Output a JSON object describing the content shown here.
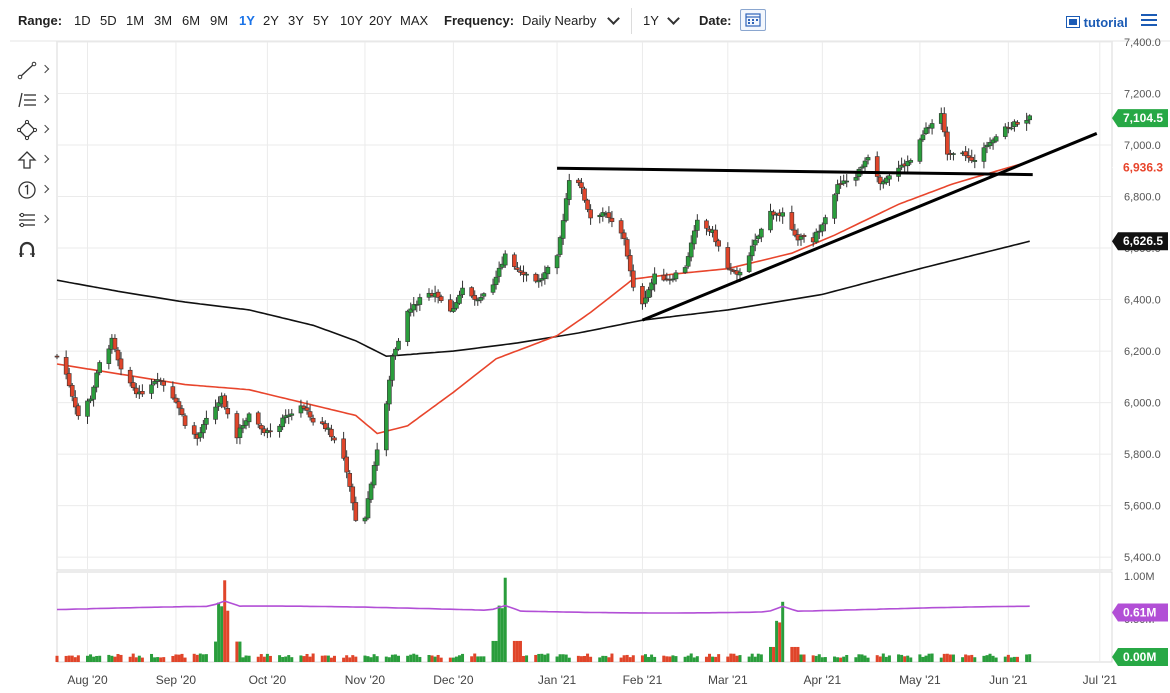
{
  "toolbar": {
    "range_label": "Range:",
    "ranges": [
      "1D",
      "5D",
      "1M",
      "3M",
      "6M",
      "9M",
      "1Y",
      "2Y",
      "3Y",
      "5Y",
      "10Y",
      "20Y",
      "MAX"
    ],
    "active_range": "1Y",
    "frequency_label": "Frequency:",
    "frequency_value": "Daily Nearby",
    "period_value": "1Y",
    "date_label": "Date:",
    "tutorial_label": "tutorial"
  },
  "drawing_tools": [
    "line-tool-icon",
    "fibonacci-tool-icon",
    "shape-tool-icon",
    "arrow-tool-icon",
    "counter-tool-icon",
    "pitchfork-tool-icon",
    "magnet-icon"
  ],
  "colors": {
    "up": "#2a9d3c",
    "down": "#e0452a",
    "ma50": "#e8452c",
    "ma200": "#111111",
    "volume_avg": "#b24fd6",
    "price_badge": "#27a845",
    "ma50_badge": "#e8452c",
    "ma200_badge": "#111111",
    "vol_badge": "#b24fd6",
    "vol_zero_badge": "#27a845"
  },
  "badges": {
    "last_price": "7,104.5",
    "ma50_value": "6,936.3",
    "ma200_value": "6,626.5",
    "volume_avg": "0.61M",
    "volume_zero": "0.00M"
  },
  "chart_data": {
    "type": "candlestick",
    "x_labels": [
      "Aug '20",
      "Sep '20",
      "Oct '20",
      "Nov '20",
      "Dec '20",
      "Jan '21",
      "Feb '21",
      "Mar '21",
      "Apr '21",
      "May '21",
      "Jun '21",
      "Jul '21"
    ],
    "y_ticks": [
      "7,400.0",
      "7,200.0",
      "7,000.0",
      "6,800.0",
      "6,600.0",
      "6,400.0",
      "6,200.0",
      "6,000.0",
      "5,800.0",
      "5,600.0",
      "5,400.0"
    ],
    "ylim": [
      5350,
      7400
    ],
    "volume_ticks": [
      "1.00M",
      "0.50M"
    ],
    "volume_ylim": [
      0,
      1.0
    ],
    "grid": true,
    "close_anchors": [
      [
        "2020-07-24",
        6180
      ],
      [
        "2020-07-27",
        6110
      ],
      [
        "2020-07-31",
        5950
      ],
      [
        "2020-08-04",
        6020
      ],
      [
        "2020-08-07",
        6150
      ],
      [
        "2020-08-11",
        6240
      ],
      [
        "2020-08-14",
        6120
      ],
      [
        "2020-08-20",
        6030
      ],
      [
        "2020-08-26",
        6100
      ],
      [
        "2020-09-01",
        6010
      ],
      [
        "2020-09-04",
        5920
      ],
      [
        "2020-09-08",
        5860
      ],
      [
        "2020-09-11",
        5930
      ],
      [
        "2020-09-16",
        6020
      ],
      [
        "2020-09-21",
        5870
      ],
      [
        "2020-09-25",
        5960
      ],
      [
        "2020-09-29",
        5900
      ],
      [
        "2020-10-02",
        5880
      ],
      [
        "2020-10-06",
        5930
      ],
      [
        "2020-10-12",
        5990
      ],
      [
        "2020-10-16",
        5930
      ],
      [
        "2020-10-21",
        5900
      ],
      [
        "2020-10-26",
        5780
      ],
      [
        "2020-10-30",
        5550
      ],
      [
        "2020-11-02",
        5560
      ],
      [
        "2020-11-05",
        5760
      ],
      [
        "2020-11-09",
        5990
      ],
      [
        "2020-11-11",
        6180
      ],
      [
        "2020-11-16",
        6350
      ],
      [
        "2020-11-20",
        6400
      ],
      [
        "2020-11-25",
        6430
      ],
      [
        "2020-11-30",
        6350
      ],
      [
        "2020-12-04",
        6440
      ],
      [
        "2020-12-09",
        6390
      ],
      [
        "2020-12-14",
        6450
      ],
      [
        "2020-12-18",
        6580
      ],
      [
        "2020-12-22",
        6520
      ],
      [
        "2020-12-29",
        6470
      ],
      [
        "2021-01-04",
        6560
      ],
      [
        "2021-01-08",
        6870
      ],
      [
        "2021-01-11",
        6860
      ],
      [
        "2021-01-15",
        6720
      ],
      [
        "2021-01-19",
        6740
      ],
      [
        "2021-01-26",
        6640
      ],
      [
        "2021-01-29",
        6440
      ],
      [
        "2021-02-01",
        6390
      ],
      [
        "2021-02-05",
        6490
      ],
      [
        "2021-02-10",
        6480
      ],
      [
        "2021-02-15",
        6530
      ],
      [
        "2021-02-19",
        6700
      ],
      [
        "2021-02-24",
        6660
      ],
      [
        "2021-03-01",
        6520
      ],
      [
        "2021-03-04",
        6490
      ],
      [
        "2021-03-09",
        6600
      ],
      [
        "2021-03-15",
        6740
      ],
      [
        "2021-03-19",
        6730
      ],
      [
        "2021-03-23",
        6640
      ],
      [
        "2021-03-29",
        6630
      ],
      [
        "2021-04-01",
        6700
      ],
      [
        "2021-04-06",
        6840
      ],
      [
        "2021-04-12",
        6880
      ],
      [
        "2021-04-16",
        6960
      ],
      [
        "2021-04-20",
        6860
      ],
      [
        "2021-04-26",
        6910
      ],
      [
        "2021-04-30",
        6940
      ],
      [
        "2021-05-05",
        7060
      ],
      [
        "2021-05-10",
        7120
      ],
      [
        "2021-05-12",
        6970
      ],
      [
        "2021-05-17",
        6980
      ],
      [
        "2021-05-20",
        6930
      ],
      [
        "2021-05-25",
        7010
      ],
      [
        "2021-05-31",
        7060
      ],
      [
        "2021-06-04",
        7090
      ],
      [
        "2021-06-08",
        7104.5
      ]
    ],
    "ma50_anchors": [
      [
        "2020-07-24",
        6150
      ],
      [
        "2020-08-14",
        6110
      ],
      [
        "2020-09-04",
        6070
      ],
      [
        "2020-09-25",
        6050
      ],
      [
        "2020-10-16",
        5990
      ],
      [
        "2020-10-30",
        5950
      ],
      [
        "2020-11-06",
        5880
      ],
      [
        "2020-11-16",
        5910
      ],
      [
        "2020-12-01",
        6040
      ],
      [
        "2020-12-15",
        6170
      ],
      [
        "2021-01-04",
        6260
      ],
      [
        "2021-01-15",
        6350
      ],
      [
        "2021-01-29",
        6480
      ],
      [
        "2021-02-12",
        6500
      ],
      [
        "2021-03-01",
        6520
      ],
      [
        "2021-03-22",
        6580
      ],
      [
        "2021-04-05",
        6650
      ],
      [
        "2021-04-26",
        6770
      ],
      [
        "2021-05-14",
        6850
      ],
      [
        "2021-06-08",
        6936.3
      ]
    ],
    "ma200_anchors": [
      [
        "2020-07-24",
        6475
      ],
      [
        "2020-08-14",
        6430
      ],
      [
        "2020-09-04",
        6390
      ],
      [
        "2020-09-25",
        6360
      ],
      [
        "2020-10-16",
        6300
      ],
      [
        "2020-10-30",
        6240
      ],
      [
        "2020-11-09",
        6180
      ],
      [
        "2020-12-01",
        6200
      ],
      [
        "2020-12-21",
        6230
      ],
      [
        "2021-01-11",
        6270
      ],
      [
        "2021-02-01",
        6320
      ],
      [
        "2021-03-01",
        6360
      ],
      [
        "2021-04-01",
        6420
      ],
      [
        "2021-05-03",
        6520
      ],
      [
        "2021-06-08",
        6626.5
      ]
    ],
    "trendlines": [
      {
        "from": [
          "2021-01-04",
          6910
        ],
        "to": [
          "2021-06-09",
          6885
        ]
      },
      {
        "from": [
          "2021-02-01",
          6320
        ],
        "to": [
          "2021-06-30",
          7045
        ]
      }
    ],
    "volume_spikes": [
      [
        "2020-09-17",
        0.95
      ],
      [
        "2020-12-18",
        0.98
      ],
      [
        "2021-03-19",
        0.7
      ]
    ],
    "volume_avg_value": 0.61
  }
}
